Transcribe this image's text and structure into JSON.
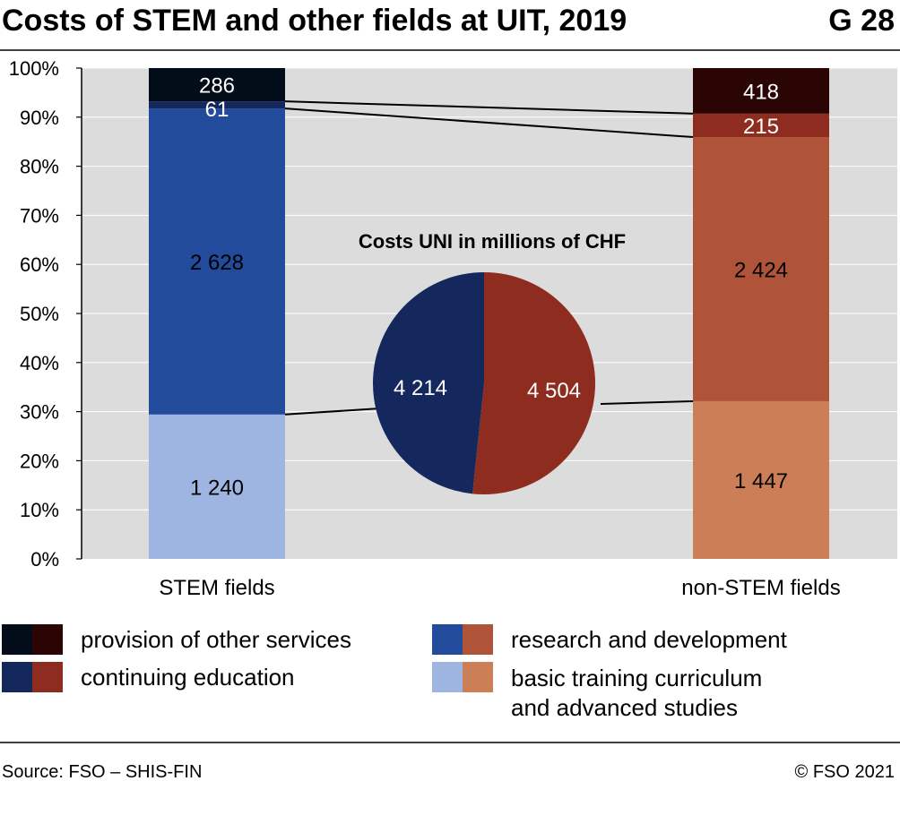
{
  "header": {
    "title": "Costs of STEM and other fields at UIT, 2019",
    "code": "G 28"
  },
  "footer": {
    "source": "Source: FSO – SHIS-FIN",
    "copyright": "© FSO 2021"
  },
  "legend": [
    {
      "label": "provision of other services",
      "colors": [
        "#030d1a",
        "#2b0404"
      ]
    },
    {
      "label": "research and development",
      "colors": [
        "#234b9c",
        "#b05439"
      ]
    },
    {
      "label": "continuing education",
      "colors": [
        "#15285e",
        "#8f2c20"
      ]
    },
    {
      "label_lines": [
        "basic training curriculum",
        "and advanced studies"
      ],
      "colors": [
        "#9fb5e1",
        "#cc7f56"
      ]
    }
  ],
  "chart_data": [
    {
      "type": "bar",
      "stacked": "percent",
      "categories": [
        "STEM fields",
        "non-STEM fields"
      ],
      "yticks": [
        "0%",
        "10%",
        "20%",
        "30%",
        "40%",
        "50%",
        "60%",
        "70%",
        "80%",
        "90%",
        "100%"
      ],
      "ylim": [
        0,
        100
      ],
      "grid": true,
      "series": [
        {
          "name": "basic training curriculum and advanced studies",
          "values": [
            1240,
            1447
          ],
          "labels": [
            "1 240",
            "1 447"
          ],
          "colors": [
            "#9fb5e1",
            "#cc7f56"
          ]
        },
        {
          "name": "research and development",
          "values": [
            2628,
            2424
          ],
          "labels": [
            "2 628",
            "2 424"
          ],
          "colors": [
            "#234b9c",
            "#b05439"
          ]
        },
        {
          "name": "continuing education",
          "values": [
            61,
            215
          ],
          "labels": [
            "61",
            "215"
          ],
          "colors": [
            "#15285e",
            "#8f2c20"
          ]
        },
        {
          "name": "provision of other services",
          "values": [
            286,
            418
          ],
          "labels": [
            "286",
            "418"
          ],
          "colors": [
            "#030d1a",
            "#2b0404"
          ]
        }
      ]
    },
    {
      "type": "pie",
      "title": "Costs UNI in millions of CHF",
      "slices": [
        {
          "value": 4504,
          "label": "4 504",
          "color": "#8f2c20"
        },
        {
          "value": 4214,
          "label": "4 214",
          "color": "#15285e"
        }
      ]
    }
  ]
}
